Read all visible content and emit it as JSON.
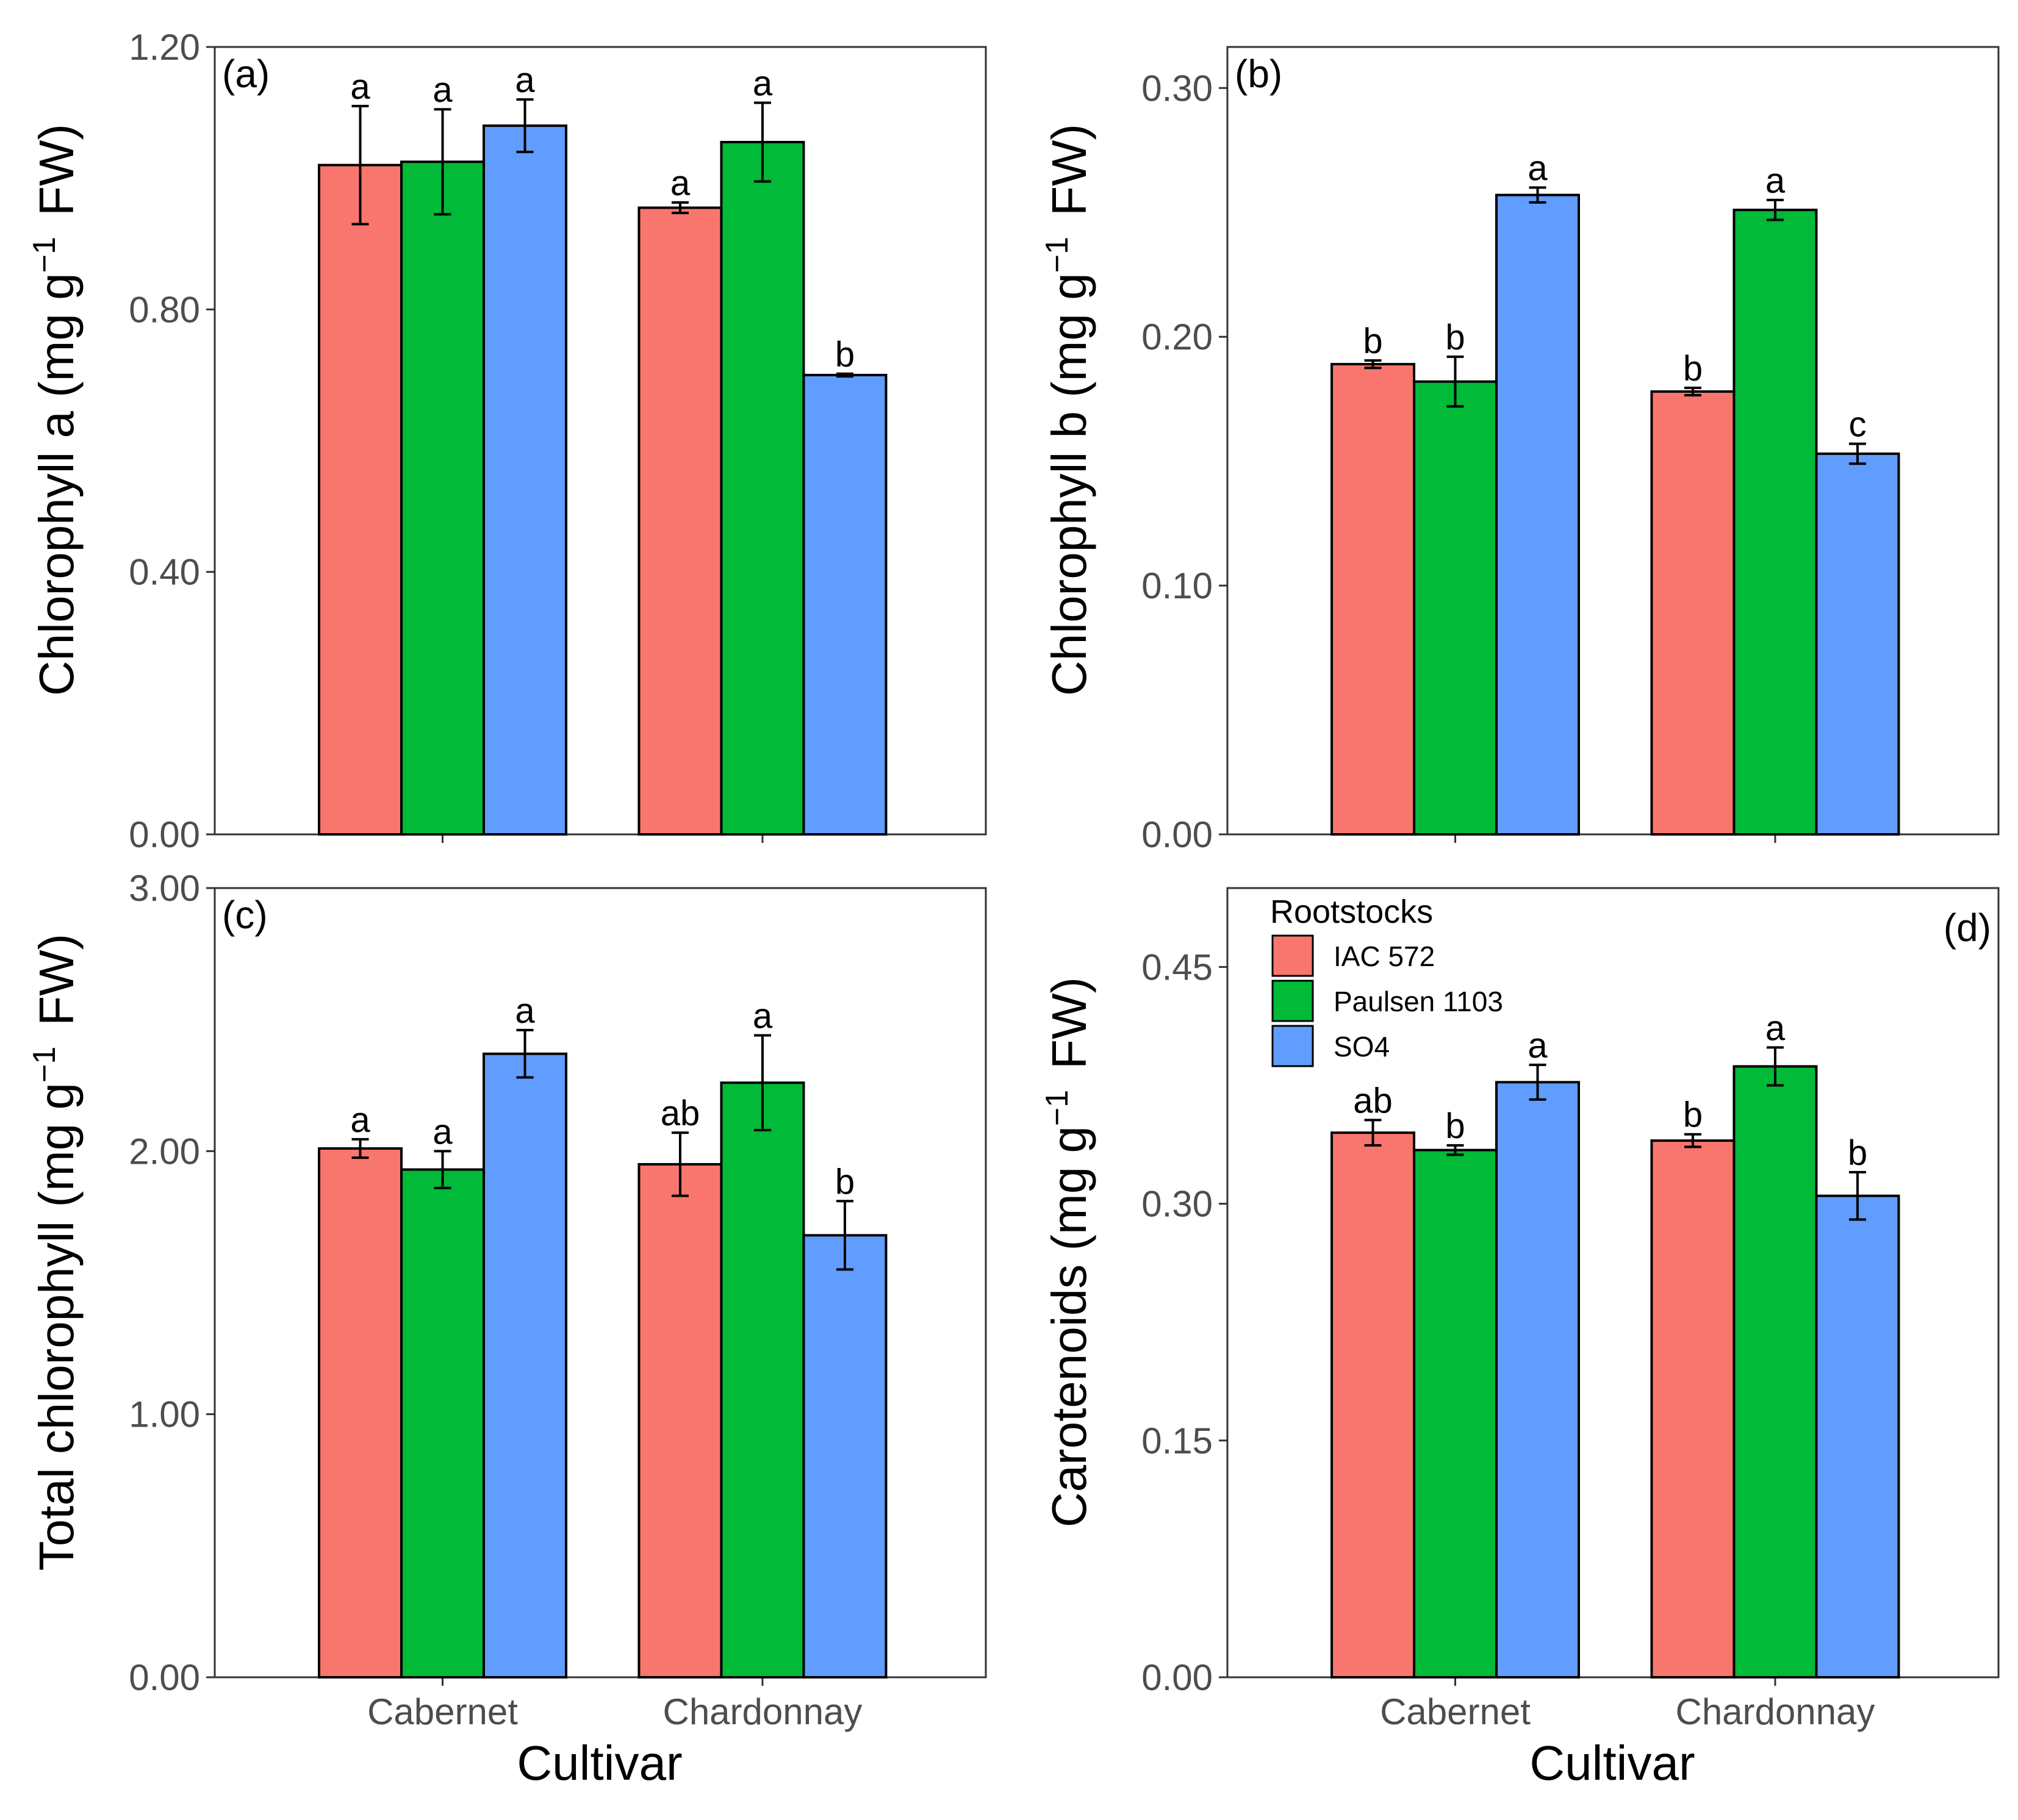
{
  "figure": {
    "x_title": "Cultivar",
    "legend": {
      "title": "Rootstocks",
      "entries": [
        "IAC 572",
        "Paulsen 1103",
        "SO4"
      ]
    },
    "colors": {
      "IAC 572": "#F8766D",
      "Paulsen 1103": "#00BA38",
      "SO4": "#619CFF",
      "border": "#000000",
      "tick_text": "#4d4d4d"
    }
  },
  "chart_data": [
    {
      "id": "a",
      "type": "bar",
      "panel_label": "(a)",
      "ylabel_main": "Chlorophyll a (mg g",
      "ylabel_sup": "−1",
      "ylabel_tail": "FW)",
      "ylim": [
        0,
        1.2
      ],
      "yticks": [
        "0.00",
        "0.40",
        "0.80",
        "1.20"
      ],
      "categories": [
        "Cabernet",
        "Chardonnay"
      ],
      "series": [
        {
          "name": "IAC 572",
          "values": [
            1.02,
            0.955
          ],
          "errors": [
            0.09,
            0.008
          ],
          "letters": [
            "a",
            "a"
          ]
        },
        {
          "name": "Paulsen 1103",
          "values": [
            1.025,
            1.055
          ],
          "errors": [
            0.08,
            0.06
          ],
          "letters": [
            "a",
            "a"
          ]
        },
        {
          "name": "SO4",
          "values": [
            1.08,
            0.7
          ],
          "errors": [
            0.04,
            0.002
          ],
          "letters": [
            "a",
            "b"
          ]
        }
      ]
    },
    {
      "id": "b",
      "type": "bar",
      "panel_label": "(b)",
      "ylabel_main": "Chlorophyll b (mg g",
      "ylabel_sup": "−1",
      "ylabel_tail": "FW)",
      "ylim": [
        0,
        0.3165
      ],
      "yticks": [
        "0.00",
        "0.10",
        "0.20",
        "0.30"
      ],
      "categories": [
        "Cabernet",
        "Chardonnay"
      ],
      "series": [
        {
          "name": "IAC 572",
          "values": [
            0.189,
            0.178
          ],
          "errors": [
            0.0015,
            0.0015
          ],
          "letters": [
            "b",
            "b"
          ]
        },
        {
          "name": "Paulsen 1103",
          "values": [
            0.182,
            0.251
          ],
          "errors": [
            0.01,
            0.004
          ],
          "letters": [
            "b",
            "a"
          ]
        },
        {
          "name": "SO4",
          "values": [
            0.257,
            0.153
          ],
          "errors": [
            0.003,
            0.004
          ],
          "letters": [
            "a",
            "c"
          ]
        }
      ]
    },
    {
      "id": "c",
      "type": "bar",
      "panel_label": "(c)",
      "ylabel_main": "Total chlorophyll (mg g",
      "ylabel_sup": "−1",
      "ylabel_tail": "FW)",
      "ylim": [
        0,
        3.0
      ],
      "yticks": [
        "0.00",
        "1.00",
        "2.00",
        "3.00"
      ],
      "categories": [
        "Cabernet",
        "Chardonnay"
      ],
      "xticks": [
        "Cabernet",
        "Chardonnay"
      ],
      "series": [
        {
          "name": "IAC 572",
          "values": [
            2.01,
            1.95
          ],
          "errors": [
            0.035,
            0.12
          ],
          "letters": [
            "a",
            "ab"
          ]
        },
        {
          "name": "Paulsen 1103",
          "values": [
            1.93,
            2.26
          ],
          "errors": [
            0.07,
            0.18
          ],
          "letters": [
            "a",
            "a"
          ]
        },
        {
          "name": "SO4",
          "values": [
            2.37,
            1.68
          ],
          "errors": [
            0.09,
            0.13
          ],
          "letters": [
            "a",
            "b"
          ]
        }
      ]
    },
    {
      "id": "d",
      "type": "bar",
      "panel_label": "(d)",
      "ylabel_main": "Carotenoids (mg g",
      "ylabel_sup": "−1",
      "ylabel_tail": "FW)",
      "ylim": [
        0,
        0.5
      ],
      "yticks": [
        "0.00",
        "0.15",
        "0.30",
        "0.45"
      ],
      "categories": [
        "Cabernet",
        "Chardonnay"
      ],
      "xticks": [
        "Cabernet",
        "Chardonnay"
      ],
      "series": [
        {
          "name": "IAC 572",
          "values": [
            0.345,
            0.34
          ],
          "errors": [
            0.008,
            0.004
          ],
          "letters": [
            "ab",
            "b"
          ]
        },
        {
          "name": "Paulsen 1103",
          "values": [
            0.334,
            0.387
          ],
          "errors": [
            0.003,
            0.012
          ],
          "letters": [
            "b",
            "a"
          ]
        },
        {
          "name": "SO4",
          "values": [
            0.377,
            0.305
          ],
          "errors": [
            0.011,
            0.015
          ],
          "letters": [
            "a",
            "b"
          ]
        }
      ]
    }
  ]
}
